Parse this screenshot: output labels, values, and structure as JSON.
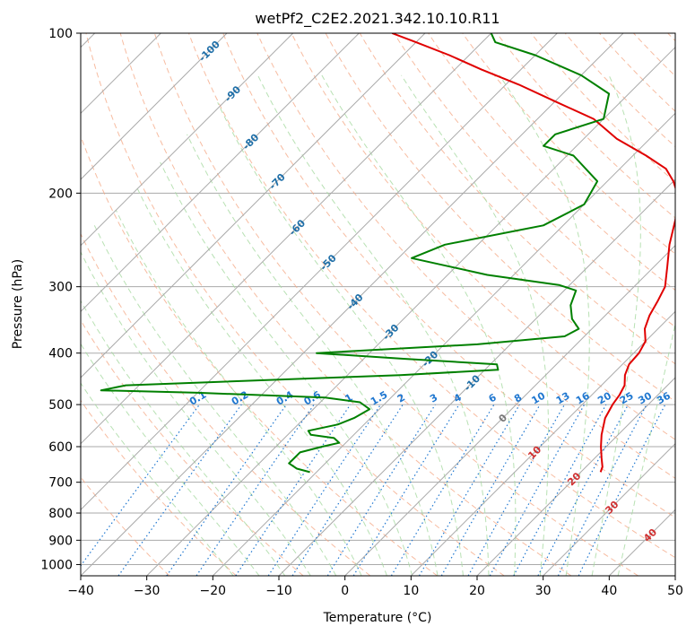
{
  "chart_data": {
    "type": "line",
    "title": "wetPf2_C2E2.2021.342.10.10.R11",
    "xlabel": "Temperature (°C)",
    "ylabel": "Pressure (hPa)",
    "xlim": [
      -40,
      50
    ],
    "ylim": [
      1050,
      100
    ],
    "y_scale": "log",
    "x_ticks": [
      "−40",
      "−30",
      "−20",
      "−10",
      "0",
      "10",
      "20",
      "30",
      "40",
      "50"
    ],
    "y_ticks": [
      {
        "p": 100,
        "label": "100"
      },
      {
        "p": 200,
        "label": "200"
      },
      {
        "p": 300,
        "label": "300"
      },
      {
        "p": 400,
        "label": "400"
      },
      {
        "p": 500,
        "label": "500"
      },
      {
        "p": 600,
        "label": "600"
      },
      {
        "p": 700,
        "label": "700"
      },
      {
        "p": 800,
        "label": "800"
      },
      {
        "p": 900,
        "label": "900"
      },
      {
        "p": 1000,
        "label": "1000"
      }
    ],
    "grid": true,
    "colors": {
      "temperature": "#e00000",
      "dewpoint": "#008000",
      "isotherm": "#aaaaaa",
      "dry_adiabat": "#f4a582",
      "moist_adiabat": "#a6d9a0",
      "mixing_ratio": "#1f77d0",
      "isotherm_label": "#1f6fa8",
      "warm_label": "#d03030",
      "zero_label": "#777777"
    },
    "series": [
      {
        "key": "temperature",
        "points": [
          [
            23.0,
            670
          ],
          [
            22.5,
            655
          ],
          [
            21.0,
            630
          ],
          [
            19.2,
            600
          ],
          [
            17.5,
            570
          ],
          [
            15.5,
            530
          ],
          [
            14.6,
            500
          ],
          [
            14.2,
            480
          ],
          [
            13.5,
            460
          ],
          [
            12.0,
            440
          ],
          [
            11.0,
            420
          ],
          [
            10.8,
            400
          ],
          [
            10.0,
            380
          ],
          [
            8.0,
            360
          ],
          [
            6.7,
            340
          ],
          [
            5.8,
            320
          ],
          [
            4.7,
            300
          ],
          [
            2.0,
            275
          ],
          [
            -1.0,
            250
          ],
          [
            -3.8,
            225
          ],
          [
            -6.5,
            205
          ],
          [
            -10.0,
            190
          ],
          [
            -13.0,
            180
          ],
          [
            -18.0,
            170
          ],
          [
            -25.0,
            158
          ],
          [
            -31.5,
            145
          ],
          [
            -39.5,
            135
          ],
          [
            -48.0,
            125
          ],
          [
            -56.0,
            117
          ],
          [
            -63.0,
            110
          ],
          [
            -70.0,
            104
          ],
          [
            -75.0,
            100
          ]
        ]
      },
      {
        "key": "dewpoint",
        "points": [
          [
            -21.0,
            670
          ],
          [
            -23.5,
            660
          ],
          [
            -25.5,
            645
          ],
          [
            -25.5,
            630
          ],
          [
            -25.5,
            615
          ],
          [
            -23.0,
            600
          ],
          [
            -21.0,
            590
          ],
          [
            -22.5,
            578
          ],
          [
            -26.5,
            570
          ],
          [
            -27.5,
            560
          ],
          [
            -24.0,
            545
          ],
          [
            -22.5,
            530
          ],
          [
            -21.5,
            510
          ],
          [
            -24.0,
            495
          ],
          [
            -30.0,
            485
          ],
          [
            -50.0,
            475
          ],
          [
            -65.0,
            470
          ],
          [
            -62.0,
            460
          ],
          [
            -22.0,
            440
          ],
          [
            -8.0,
            430
          ],
          [
            -9.0,
            420
          ],
          [
            -24.0,
            410
          ],
          [
            -38.0,
            400
          ],
          [
            -15.0,
            385
          ],
          [
            -3.0,
            372
          ],
          [
            -2.0,
            360
          ],
          [
            -4.5,
            345
          ],
          [
            -6.8,
            325
          ],
          [
            -8.2,
            305
          ],
          [
            -11.5,
            298
          ],
          [
            -24.0,
            285
          ],
          [
            -38.0,
            265
          ],
          [
            -35.0,
            250
          ],
          [
            -23.0,
            230
          ],
          [
            -20.0,
            210
          ],
          [
            -21.5,
            190
          ],
          [
            -29.0,
            170
          ],
          [
            -35.0,
            163
          ],
          [
            -35.0,
            155
          ],
          [
            -30.0,
            145
          ],
          [
            -33.0,
            130
          ],
          [
            -40.0,
            120
          ],
          [
            -50.0,
            110
          ],
          [
            -58.0,
            104
          ],
          [
            -60.0,
            100
          ]
        ]
      }
    ],
    "isotherm_labels": [
      {
        "text": "-100",
        "t": -100,
        "p": 108
      },
      {
        "text": "-90",
        "t": -90,
        "p": 130
      },
      {
        "text": "-80",
        "t": -80,
        "p": 160
      },
      {
        "text": "-70",
        "t": -70,
        "p": 190
      },
      {
        "text": "-60",
        "t": -60,
        "p": 232
      },
      {
        "text": "-50",
        "t": -50,
        "p": 270
      },
      {
        "text": "-40",
        "t": -40,
        "p": 320
      },
      {
        "text": "-30",
        "t": -30,
        "p": 365
      },
      {
        "text": "-20",
        "t": -20,
        "p": 410
      },
      {
        "text": "-10",
        "t": -10,
        "p": 455
      },
      {
        "text": "0",
        "t": 0,
        "p": 530
      },
      {
        "text": "10",
        "t": 10,
        "p": 615
      },
      {
        "text": "20",
        "t": 20,
        "p": 690
      },
      {
        "text": "30",
        "t": 30,
        "p": 780
      },
      {
        "text": "40",
        "t": 40,
        "p": 880
      }
    ],
    "mixing_ratio_labels": [
      "0.1",
      "0.2",
      "0.4",
      "0.6",
      "1",
      "1.5",
      "2",
      "3",
      "4",
      "6",
      "8",
      "10",
      "13",
      "16",
      "20",
      "25",
      "30",
      "36"
    ]
  }
}
